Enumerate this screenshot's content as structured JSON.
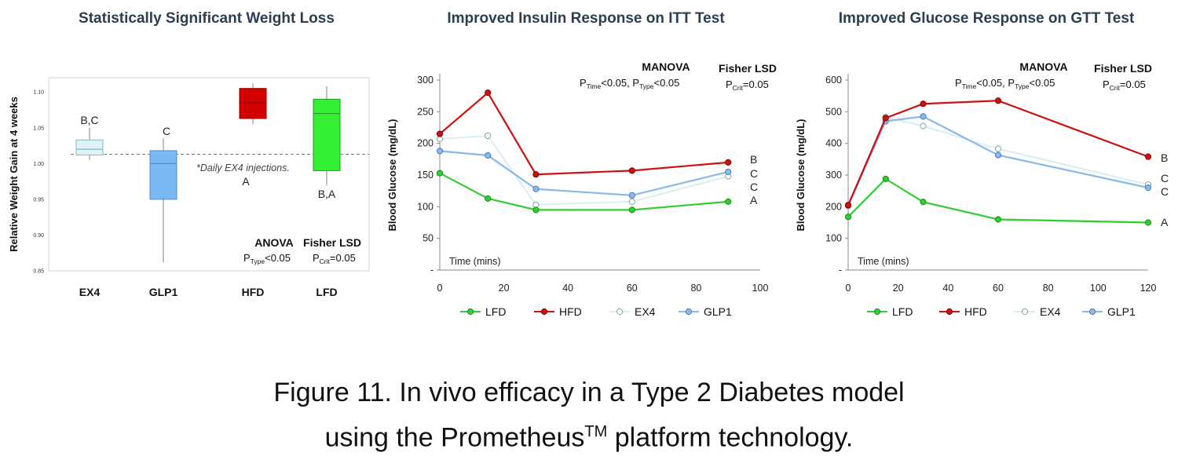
{
  "chart_data": [
    {
      "type": "box",
      "title": "Statistically Significant Weight Loss",
      "ylabel": "Relative Weight Gain at 4 weeks",
      "ylim": [
        0.85,
        1.12
      ],
      "yticks": [
        "0.85",
        "0.90",
        "0.95",
        "1.00",
        "1.05",
        "1.10"
      ],
      "reference_line": 1.013,
      "annotation": "*Daily EX4 injections.",
      "categories": [
        "EX4",
        "GLP1"
      ],
      "categories_full": [
        "EX4",
        "GLP1",
        "HFD",
        "LFD"
      ],
      "boxes": [
        {
          "name": "EX4",
          "min": 1.005,
          "q1": 1.012,
          "median": 1.02,
          "q3": 1.033,
          "max": 1.05,
          "color": "#dff3f7",
          "edge": "#8ab6c0",
          "letters": "B,C"
        },
        {
          "name": "GLP1",
          "min": 0.862,
          "q1": 0.95,
          "median": 1.0,
          "q3": 1.018,
          "max": 1.035,
          "color": "#7ab8f5",
          "edge": "#4d8ac8",
          "letters": "C"
        },
        {
          "name": "HFD",
          "min": 1.055,
          "q1": 1.063,
          "median": 1.085,
          "q3": 1.105,
          "max": 1.112,
          "color": "#d40000",
          "edge": "#900000",
          "letters": "A"
        },
        {
          "name": "LFD",
          "min": 0.97,
          "q1": 0.99,
          "median": 1.07,
          "q3": 1.09,
          "max": 1.108,
          "color": "#33ee33",
          "edge": "#20a020",
          "letters": "B,A"
        }
      ],
      "stats": {
        "test1": "ANOVA",
        "p1_main": "P",
        "p1_sub": "Type",
        "p1_rest": "<0.05",
        "test2": "Fisher LSD",
        "p2_main": "P",
        "p2_sub": "Crit",
        "p2_rest": "=0.05"
      }
    },
    {
      "type": "line",
      "title": "Improved Insulin Response on ITT Test",
      "ylabel": "Blood Glucose (mg/dL)",
      "xlabel": "Time (mins)",
      "x": [
        0,
        15,
        30,
        60,
        90
      ],
      "xlim": [
        0,
        100
      ],
      "xticks": [
        "0",
        "20",
        "40",
        "60",
        "80",
        "100"
      ],
      "ylim": [
        0,
        300
      ],
      "yticks": [
        "-",
        "50",
        "100",
        "150",
        "200",
        "250",
        "300"
      ],
      "series": [
        {
          "name": "LFD",
          "values": [
            153,
            113,
            95,
            95,
            108
          ],
          "color": "#33cc33",
          "letter": "A"
        },
        {
          "name": "HFD",
          "values": [
            215,
            280,
            151,
            157,
            170
          ],
          "color": "#cc1111",
          "letter": "B"
        },
        {
          "name": "EX4",
          "values": [
            207,
            212,
            103,
            108,
            148
          ],
          "color": "#c5e8f2",
          "letter": "C"
        },
        {
          "name": "GLP1",
          "values": [
            188,
            181,
            128,
            118,
            155
          ],
          "color": "#8ab8e8",
          "letter": "C"
        }
      ],
      "letters": [
        "B",
        "C",
        "C",
        "A"
      ],
      "stats": {
        "test1": "MANOVA",
        "p1a_main": "P",
        "p1a_sub": "Time",
        "p1a_rest": "<0.05,",
        "p1b_main": "P",
        "p1b_sub": "Type",
        "p1b_rest": "<0.05",
        "test2": "Fisher LSD",
        "p2_main": "P",
        "p2_sub": "Crit",
        "p2_rest": "=0.05"
      }
    },
    {
      "type": "line",
      "title": "Improved Glucose Response on GTT Test",
      "ylabel": "Blood Glucose (mg/dL)",
      "xlabel": "Time (mins)",
      "x": [
        0,
        15,
        30,
        60,
        120
      ],
      "xlim": [
        0,
        120
      ],
      "xticks": [
        "0",
        "20",
        "40",
        "60",
        "80",
        "100",
        "120"
      ],
      "ylim": [
        0,
        600
      ],
      "yticks": [
        "-",
        "100",
        "200",
        "300",
        "400",
        "500",
        "600"
      ],
      "series": [
        {
          "name": "LFD",
          "values": [
            168,
            288,
            215,
            160,
            150
          ],
          "color": "#33cc33",
          "letter": "A"
        },
        {
          "name": "HFD",
          "values": [
            205,
            480,
            525,
            535,
            358
          ],
          "color": "#cc1111",
          "letter": "B"
        },
        {
          "name": "EX4",
          "values": [
            205,
            483,
            455,
            383,
            270
          ],
          "color": "#c5e8f2",
          "letter": "C"
        },
        {
          "name": "GLP1",
          "values": [
            203,
            470,
            485,
            363,
            260
          ],
          "color": "#8ab8e8",
          "letter": "C"
        }
      ],
      "letters": [
        "B",
        "C",
        "C",
        "A"
      ],
      "stats": {
        "test1": "MANOVA",
        "p1a_main": "P",
        "p1a_sub": "Time",
        "p1a_rest": "<0.05,",
        "p1b_main": "P",
        "p1b_sub": "Type",
        "p1b_rest": "<0.05",
        "test2": "Fisher LSD",
        "p2_main": "P",
        "p2_sub": "Crit",
        "p2_rest": "=0.05"
      }
    }
  ],
  "caption": {
    "line1": "Figure 11. In vivo efficacy in a Type 2 Diabetes model",
    "line2a": "using the Prometheus",
    "line2sup": "TM",
    "line2b": " platform technology."
  },
  "legend": {
    "labels": [
      "LFD",
      "HFD",
      "EX4",
      "GLP1"
    ],
    "colors": [
      "#33cc33",
      "#cc1111",
      "#c5e8f2",
      "#8ab8e8"
    ]
  },
  "box_label_overrides": {
    "GLP1_display": "GLP1"
  }
}
